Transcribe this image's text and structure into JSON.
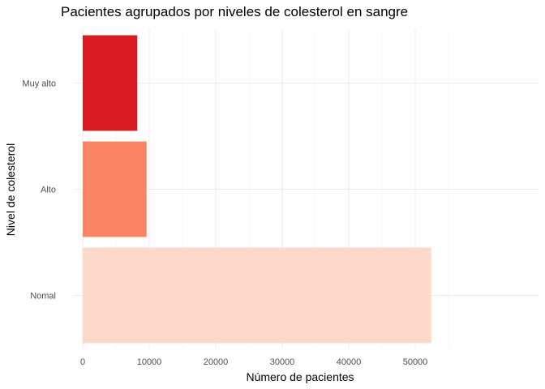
{
  "chart_data": {
    "type": "bar",
    "orientation": "horizontal",
    "title": "Pacientes agrupados por niveles de colesterol en sangre",
    "xlabel": "Número de pacientes",
    "ylabel": "Nivel de colesterol",
    "categories": [
      "Nomal",
      "Alto",
      "Muy alto"
    ],
    "values": [
      52400,
      9600,
      8200
    ],
    "colors": [
      "#fcd9cb",
      "#fb8465",
      "#d81b22"
    ],
    "xlim": [
      0,
      55000
    ],
    "xticks": [
      0,
      10000,
      20000,
      30000,
      40000,
      50000
    ],
    "grid": true,
    "legend": "none"
  }
}
